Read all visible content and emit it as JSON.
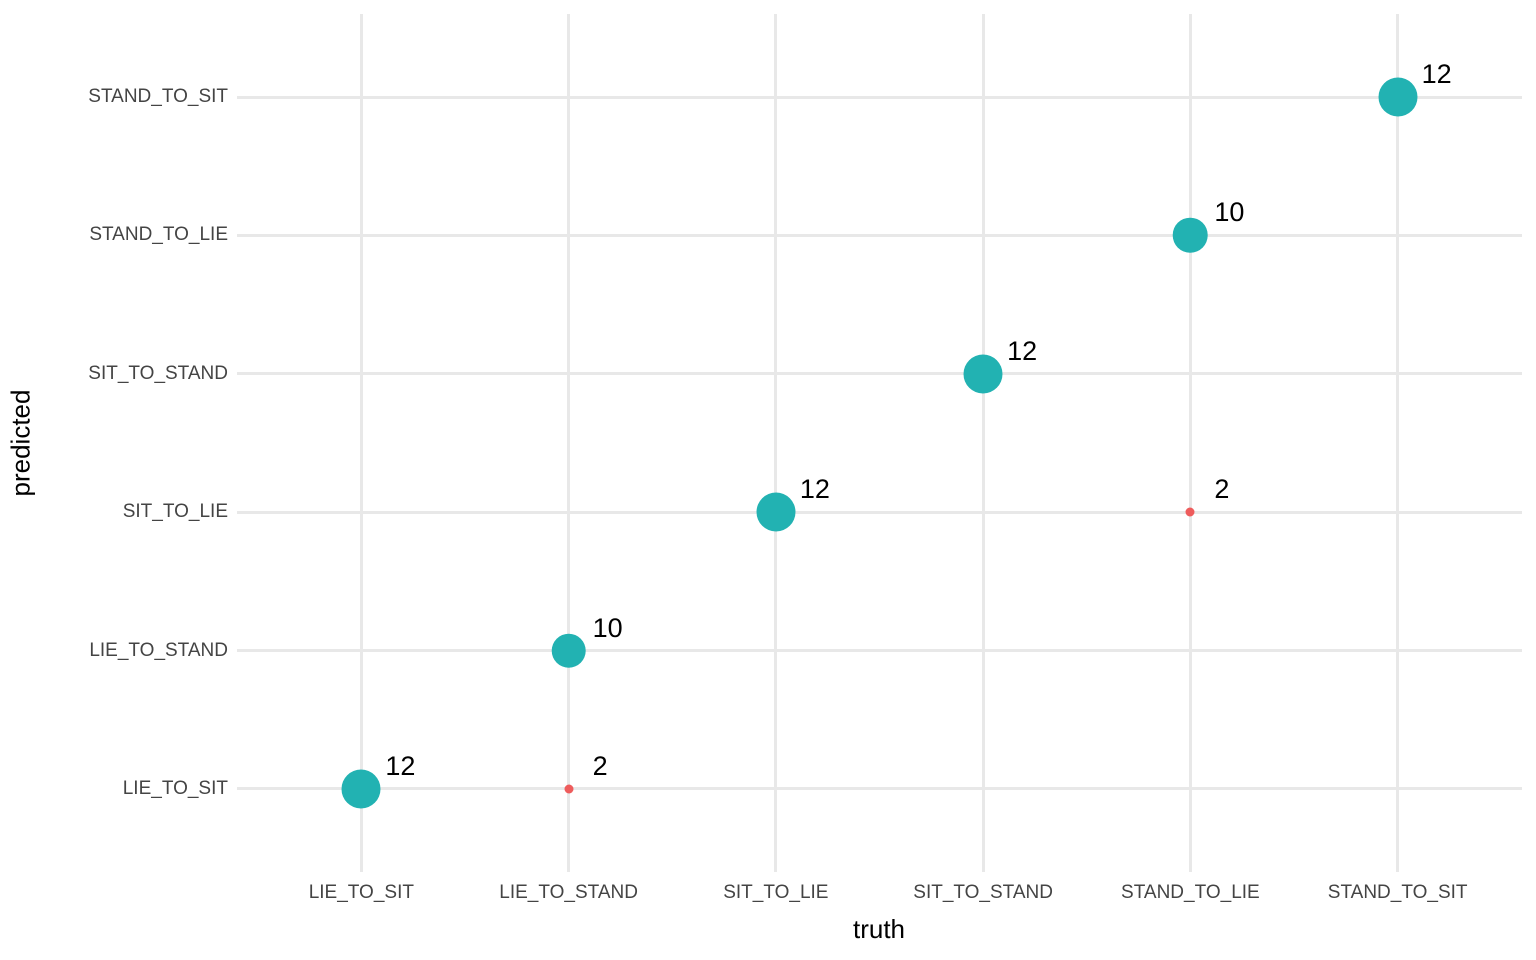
{
  "chart_data": {
    "type": "scatter",
    "title": "",
    "xlabel": "truth",
    "ylabel": "predicted",
    "x_categories": [
      "LIE_TO_SIT",
      "LIE_TO_STAND",
      "SIT_TO_LIE",
      "SIT_TO_STAND",
      "STAND_TO_LIE",
      "STAND_TO_SIT"
    ],
    "y_categories_bottom_to_top": [
      "LIE_TO_SIT",
      "LIE_TO_STAND",
      "SIT_TO_LIE",
      "SIT_TO_STAND",
      "STAND_TO_LIE",
      "STAND_TO_SIT"
    ],
    "points": [
      {
        "truth": "LIE_TO_SIT",
        "predicted": "LIE_TO_SIT",
        "count": 12,
        "kind": "correct"
      },
      {
        "truth": "LIE_TO_STAND",
        "predicted": "LIE_TO_SIT",
        "count": 2,
        "kind": "incorrect"
      },
      {
        "truth": "LIE_TO_STAND",
        "predicted": "LIE_TO_STAND",
        "count": 10,
        "kind": "correct"
      },
      {
        "truth": "SIT_TO_LIE",
        "predicted": "SIT_TO_LIE",
        "count": 12,
        "kind": "correct"
      },
      {
        "truth": "SIT_TO_STAND",
        "predicted": "SIT_TO_STAND",
        "count": 12,
        "kind": "correct"
      },
      {
        "truth": "STAND_TO_LIE",
        "predicted": "SIT_TO_LIE",
        "count": 2,
        "kind": "incorrect"
      },
      {
        "truth": "STAND_TO_LIE",
        "predicted": "STAND_TO_LIE",
        "count": 10,
        "kind": "correct"
      },
      {
        "truth": "STAND_TO_SIT",
        "predicted": "STAND_TO_SIT",
        "count": 12,
        "kind": "correct"
      }
    ],
    "colors": {
      "correct": "#22b2b2",
      "incorrect": "#ee5c5c",
      "gridline": "#e8e8e8",
      "tick_label": "#444444",
      "axis_title": "#000000"
    },
    "size_domain": [
      2,
      12
    ],
    "grid": true,
    "legend_position": "none"
  }
}
